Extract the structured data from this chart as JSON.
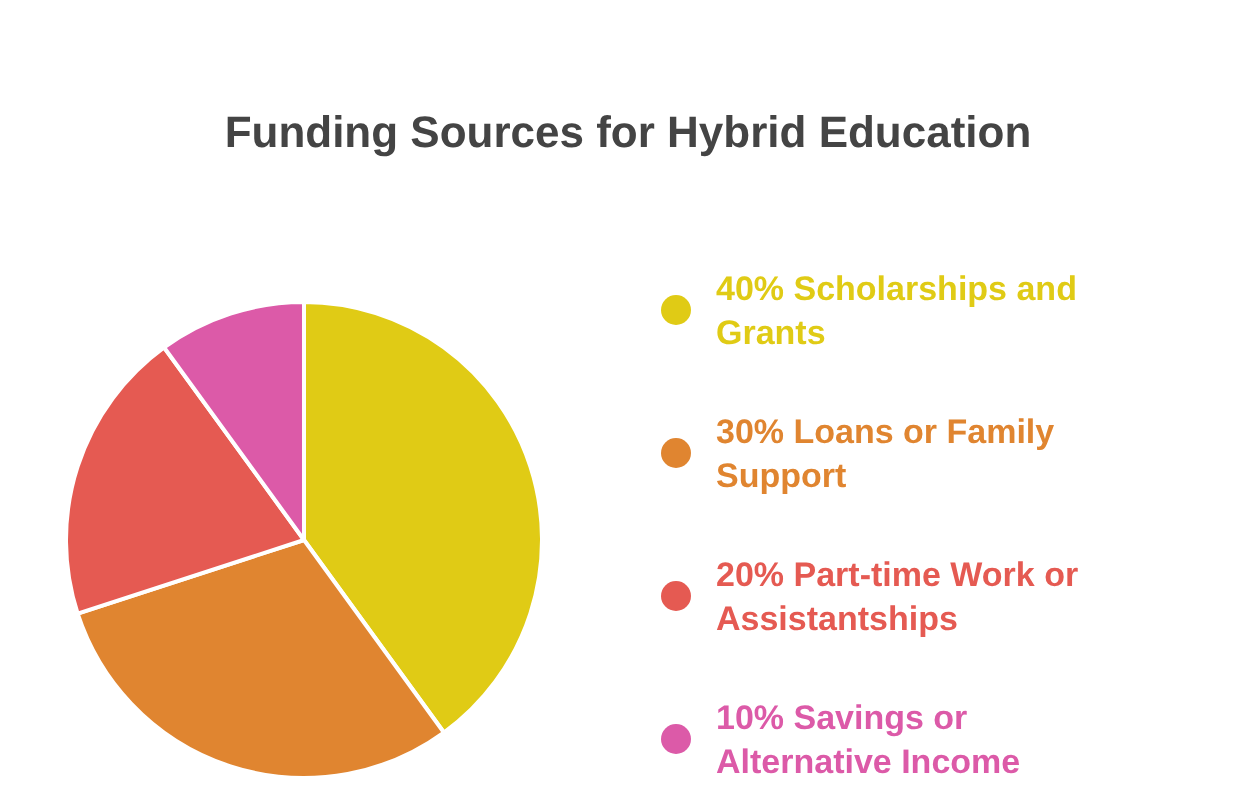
{
  "chart_data": {
    "type": "pie",
    "title": "Funding Sources for Hybrid Education",
    "categories": [
      "Scholarships and Grants",
      "Loans or Family Support",
      "Part-time Work or Assistantships",
      "Savings or Alternative Income"
    ],
    "values": [
      40,
      30,
      20,
      10
    ],
    "value_labels": [
      "40%",
      "30%",
      "20%",
      "10%"
    ],
    "colors": [
      "#e0cb15",
      "#e08530",
      "#e55a52",
      "#dc5aa8"
    ],
    "legend": "right"
  }
}
